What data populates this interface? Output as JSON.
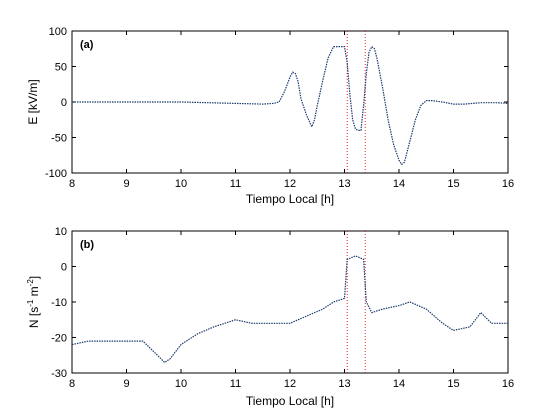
{
  "chart_data": [
    {
      "type": "line",
      "panel": "(a)",
      "xlabel": "Tiempo Local [h]",
      "ylabel": "E  [kV/m]",
      "xlim": [
        8,
        16
      ],
      "ylim": [
        -100,
        100
      ],
      "xticks": [
        8,
        9,
        10,
        11,
        12,
        13,
        14,
        15,
        16
      ],
      "yticks": [
        -100,
        -50,
        0,
        50,
        100
      ],
      "grid": false,
      "series": [
        {
          "color": "#1a3a6e",
          "style": "dotted",
          "x": [
            8,
            9,
            10,
            10.5,
            11,
            11.5,
            11.7,
            11.8,
            11.9,
            12.0,
            12.05,
            12.1,
            12.15,
            12.2,
            12.3,
            12.4,
            12.45,
            12.5,
            12.6,
            12.7,
            12.8,
            12.85,
            12.9,
            13.0,
            13.05,
            13.1,
            13.15,
            13.2,
            13.25,
            13.3,
            13.35,
            13.4,
            13.45,
            13.5,
            13.55,
            13.6,
            13.7,
            13.8,
            13.9,
            14.0,
            14.05,
            14.1,
            14.2,
            14.3,
            14.4,
            14.5,
            14.6,
            14.8,
            15.0,
            15.2,
            15.5,
            15.8,
            16.0
          ],
          "y": [
            0,
            0,
            0,
            -1,
            -2,
            -3,
            -2,
            0,
            15,
            35,
            42,
            40,
            28,
            5,
            -18,
            -35,
            -25,
            -5,
            30,
            62,
            78,
            78,
            78,
            78,
            55,
            10,
            -25,
            -38,
            -40,
            -40,
            -5,
            40,
            70,
            78,
            75,
            60,
            20,
            -25,
            -60,
            -82,
            -88,
            -85,
            -55,
            -25,
            -5,
            2,
            2,
            0,
            -3,
            -3,
            -1,
            -1,
            -2
          ]
        }
      ]
    },
    {
      "type": "line",
      "panel": "(b)",
      "xlabel": "Tiempo Local [h]",
      "ylabel_main": "N  [s",
      "ylabel_exp1": "-1",
      "ylabel_mid": " m",
      "ylabel_exp2": "-2",
      "ylabel_end": "]",
      "xlim": [
        8,
        16
      ],
      "ylim": [
        -30,
        10
      ],
      "xticks": [
        8,
        9,
        10,
        11,
        12,
        13,
        14,
        15,
        16
      ],
      "yticks": [
        -30,
        -20,
        -10,
        0,
        10
      ],
      "grid": false,
      "series": [
        {
          "color": "#1a3a6e",
          "style": "dotted",
          "x": [
            8,
            8.3,
            8.6,
            9,
            9.3,
            9.5,
            9.7,
            9.8,
            10,
            10.3,
            10.6,
            11,
            11.3,
            11.6,
            12,
            12.3,
            12.6,
            12.8,
            13,
            13.05,
            13.2,
            13.35,
            13.4,
            13.5,
            13.7,
            14,
            14.2,
            14.5,
            14.8,
            15,
            15.3,
            15.5,
            15.7,
            16
          ],
          "y": [
            -22,
            -21,
            -21,
            -21,
            -21,
            -24,
            -27,
            -26,
            -22,
            -19,
            -17,
            -15,
            -16,
            -16,
            -16,
            -14,
            -12,
            -10,
            -9,
            2,
            3,
            2,
            -10,
            -13,
            -12,
            -11,
            -10,
            -12,
            -16,
            -18,
            -17,
            -13,
            -16,
            -16
          ]
        }
      ],
      "markers": {
        "color": "#e02020",
        "x": [
          13.05,
          13.38
        ]
      }
    }
  ]
}
